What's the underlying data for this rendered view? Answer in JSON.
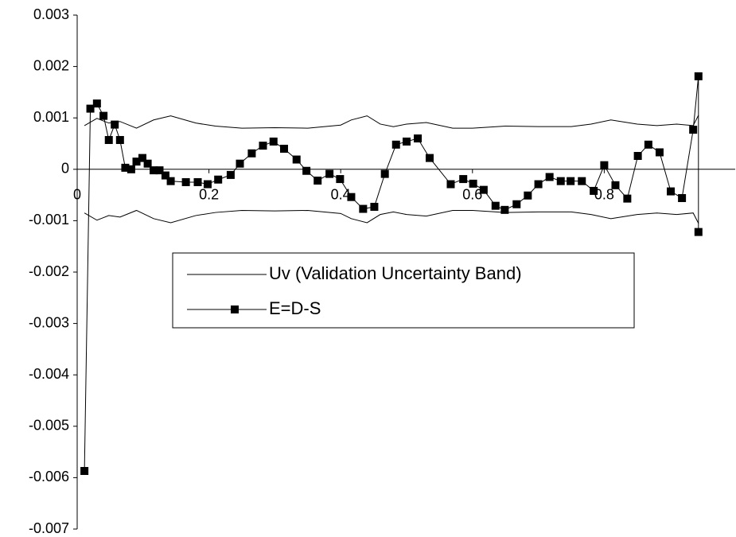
{
  "chart_data": {
    "type": "line",
    "xlim": [
      0,
      1
    ],
    "xticks": [
      0,
      0.2,
      0.4,
      0.6,
      0.8
    ],
    "ylim": [
      -0.007,
      0.003
    ],
    "yticks": [
      0.003,
      0.002,
      0.001,
      0,
      -0.001,
      -0.002,
      -0.003,
      -0.004,
      -0.005,
      -0.006,
      -0.007
    ],
    "grid": false,
    "legend": "center",
    "series": [
      {
        "name": "Uv (Validation Uncertainty Band)",
        "color": "#000000",
        "marker": "none",
        "x": [
          0.011,
          0.03,
          0.048,
          0.065,
          0.09,
          0.116,
          0.142,
          0.18,
          0.21,
          0.25,
          0.3,
          0.35,
          0.4,
          0.416,
          0.44,
          0.46,
          0.48,
          0.5,
          0.53,
          0.57,
          0.6,
          0.65,
          0.7,
          0.75,
          0.78,
          0.81,
          0.85,
          0.88,
          0.91,
          0.935,
          0.943
        ],
        "values": [
          0.00085,
          0.00099,
          0.0009,
          0.00093,
          0.0008,
          0.00096,
          0.00104,
          0.0009,
          0.00084,
          0.0008,
          0.00081,
          0.0008,
          0.00086,
          0.00096,
          0.00104,
          0.00088,
          0.00083,
          0.00088,
          0.00091,
          0.0008,
          0.0008,
          0.00084,
          0.00083,
          0.00083,
          0.00088,
          0.00096,
          0.00088,
          0.00085,
          0.00088,
          0.00085,
          0.00105
        ],
        "lower": [
          -0.00085,
          -0.00099,
          -0.0009,
          -0.00093,
          -0.0008,
          -0.00096,
          -0.00104,
          -0.0009,
          -0.00084,
          -0.0008,
          -0.00081,
          -0.0008,
          -0.00086,
          -0.00096,
          -0.00104,
          -0.00088,
          -0.00083,
          -0.00088,
          -0.00091,
          -0.0008,
          -0.0008,
          -0.00084,
          -0.00083,
          -0.00083,
          -0.00088,
          -0.00096,
          -0.00088,
          -0.00085,
          -0.00088,
          -0.00085,
          -0.00105
        ]
      },
      {
        "name": "E=D-S",
        "color": "#000000",
        "marker": "square",
        "x": [
          0.011,
          0.02,
          0.03,
          0.04,
          0.048,
          0.057,
          0.065,
          0.073,
          0.082,
          0.09,
          0.099,
          0.107,
          0.116,
          0.125,
          0.134,
          0.142,
          0.165,
          0.183,
          0.198,
          0.214,
          0.233,
          0.247,
          0.265,
          0.282,
          0.298,
          0.314,
          0.333,
          0.348,
          0.365,
          0.383,
          0.399,
          0.416,
          0.434,
          0.451,
          0.467,
          0.484,
          0.5,
          0.517,
          0.535,
          0.567,
          0.586,
          0.601,
          0.617,
          0.635,
          0.649,
          0.667,
          0.684,
          0.7,
          0.717,
          0.734,
          0.749,
          0.766,
          0.784,
          0.8,
          0.817,
          0.835,
          0.851,
          0.867,
          0.884,
          0.901,
          0.918,
          0.935,
          0.943,
          0.943
        ],
        "values": [
          -0.00587,
          0.00118,
          0.00128,
          0.00104,
          0.00057,
          0.00087,
          0.00057,
          3e-05,
          0,
          0.00015,
          0.00022,
          0.00011,
          -2e-05,
          -2e-05,
          -0.00012,
          -0.00023,
          -0.00025,
          -0.00025,
          -0.00029,
          -0.0002,
          -0.00011,
          0.00011,
          0.00031,
          0.00046,
          0.00054,
          0.0004,
          0.00019,
          -3e-05,
          -0.00022,
          -9e-05,
          -0.00019,
          -0.00054,
          -0.00077,
          -0.00073,
          -9e-05,
          0.00048,
          0.00054,
          0.0006,
          0.00022,
          -0.00029,
          -0.00019,
          -0.00028,
          -0.0004,
          -0.00071,
          -0.00079,
          -0.00068,
          -0.00051,
          -0.00029,
          -0.00015,
          -0.00023,
          -0.00023,
          -0.00023,
          -0.00042,
          8e-05,
          -0.00031,
          -0.00057,
          0.00026,
          0.00048,
          0.00033,
          -0.00043,
          -0.00056,
          0.00077,
          0.00181,
          -0.00122
        ]
      }
    ]
  }
}
